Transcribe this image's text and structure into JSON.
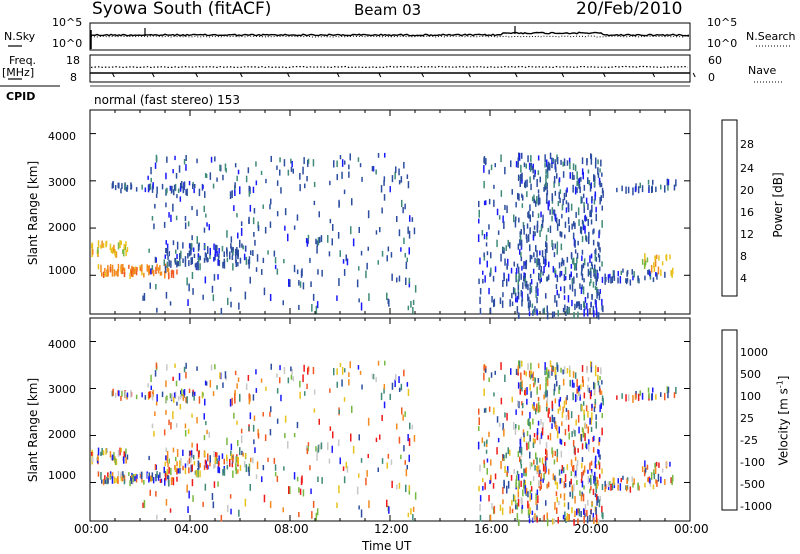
{
  "header": {
    "title": "Syowa South (fitACF)",
    "beam": "Beam 03",
    "date": "20/Feb/2010"
  },
  "top_panels": {
    "nsky_label": "N.Sky",
    "nsearch_label": "N.Search",
    "freq_label": "Freq.",
    "freq_unit": "[MHz]",
    "nave_label": "Nave",
    "cpid_label": "CPID",
    "cpid_value": "normal (fast stereo) 153",
    "noise_ticks_left": [
      "10^5",
      "10^0"
    ],
    "noise_ticks_right": [
      "10^5",
      "10^0"
    ],
    "freq_ticks": [
      "18",
      "8"
    ],
    "nave_ticks": [
      "60",
      "0"
    ]
  },
  "axes": {
    "xlabel": "Time UT",
    "ylabel": "Slant Range [km]",
    "xticks": [
      "00:00",
      "04:00",
      "08:00",
      "12:00",
      "16:00",
      "20:00",
      "00:00"
    ],
    "yticks": [
      "1000",
      "2000",
      "3000",
      "4000"
    ]
  },
  "power_colorbar": {
    "label": "Power [dB]",
    "ticks": [
      "4",
      "8",
      "12",
      "16",
      "20",
      "24",
      "28"
    ],
    "colors": [
      "#1a1aff",
      "#2d4ea0",
      "#3f8a78",
      "#77b840",
      "#e8c21c",
      "#f28a1e",
      "#f05a22",
      "#ee1b1b"
    ]
  },
  "velocity_colorbar": {
    "label": "Velocity [m s",
    "label_sup": "-1",
    "label_end": "]",
    "ticks": [
      "1000",
      "500",
      "100",
      "25",
      "-25",
      "-100",
      "-500",
      "-1000"
    ],
    "colors": [
      "#1a1aff",
      "#2d4ea0",
      "#3f8a78",
      "#77b840",
      "#c8c8c8",
      "#e8c21c",
      "#f28a1e",
      "#f05a22",
      "#ee1b1b"
    ]
  },
  "chart_data": {
    "type": "heatmap",
    "x_range_hours": [
      0,
      24
    ],
    "y_range_km": [
      180,
      4500
    ],
    "scatter_bands": [
      {
        "t0": 0.0,
        "t1": 1.5,
        "r0": 1500,
        "r1": 1750,
        "power_level": 4,
        "density": 0.6
      },
      {
        "t0": 0.3,
        "t1": 3.5,
        "r0": 1050,
        "r1": 1250,
        "power_level": 5,
        "density": 0.7
      },
      {
        "t0": 3.0,
        "t1": 6.5,
        "r0": 1250,
        "r1": 1700,
        "power_level": 1,
        "density": 0.55
      },
      {
        "t0": 0.8,
        "t1": 4.5,
        "r0": 2820,
        "r1": 3000,
        "power_level": 1,
        "density": 0.45
      },
      {
        "t0": 2.0,
        "t1": 13.0,
        "r0": 300,
        "r1": 3600,
        "power_level": 1,
        "density": 0.12
      },
      {
        "t0": 15.5,
        "t1": 17.0,
        "r0": 300,
        "r1": 3600,
        "power_level": 1,
        "density": 0.25
      },
      {
        "t0": 17.0,
        "t1": 20.5,
        "r0": 200,
        "r1": 3600,
        "power_level": 1,
        "density": 0.6
      },
      {
        "t0": 20.0,
        "t1": 23.0,
        "r0": 900,
        "r1": 1150,
        "power_level": 1,
        "density": 0.4
      },
      {
        "t0": 22.0,
        "t1": 23.3,
        "r0": 1100,
        "r1": 1500,
        "power_level": 4,
        "density": 0.4
      },
      {
        "t0": 21.0,
        "t1": 23.5,
        "r0": 2850,
        "r1": 3050,
        "power_level": 1,
        "density": 0.3
      }
    ]
  }
}
